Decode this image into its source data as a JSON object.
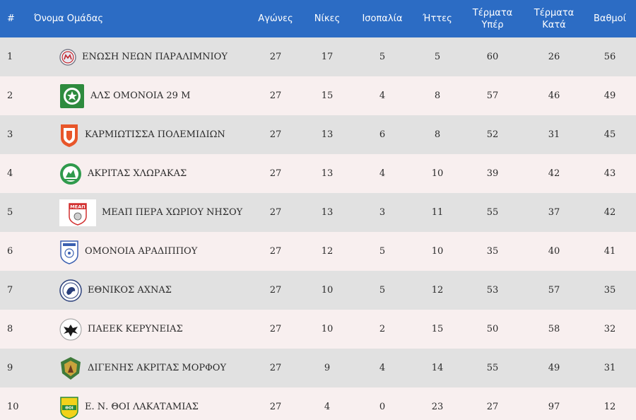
{
  "table": {
    "headers": {
      "pos": "#",
      "team": "Όνομα Ομάδας",
      "played": "Αγώνες",
      "wins": "Νίκες",
      "draws": "Ισοπαλία",
      "losses": "Ήττες",
      "goals_for": [
        "Τέρματα",
        "Υπέρ"
      ],
      "goals_against": [
        "Τέρματα",
        "Κατά"
      ],
      "points": "Βαθμοί"
    },
    "rows": [
      {
        "pos": "1",
        "team": "ΕΝΩΣΗ ΝΕΩΝ ΠΑΡΑΛΙΜΝΙΟΥ",
        "logo": "enp-crest-icon",
        "played": "27",
        "wins": "17",
        "draws": "5",
        "losses": "5",
        "gf": "60",
        "ga": "26",
        "pts": "56"
      },
      {
        "pos": "2",
        "team": "ΑΛΣ ΟΜΟΝΟΙΑ 29 Μ",
        "logo": "omonoia-29m-crest-icon",
        "played": "27",
        "wins": "15",
        "draws": "4",
        "losses": "8",
        "gf": "57",
        "ga": "46",
        "pts": "49"
      },
      {
        "pos": "3",
        "team": "ΚΑΡΜΙΩΤΙΣΣΑ ΠΟΛΕΜΙΔΙΩΝ",
        "logo": "karmiotissa-crest-icon",
        "played": "27",
        "wins": "13",
        "draws": "6",
        "losses": "8",
        "gf": "52",
        "ga": "31",
        "pts": "45"
      },
      {
        "pos": "4",
        "team": "ΑΚΡΙΤΑΣ ΧΛΩΡΑΚΑΣ",
        "logo": "akritas-crest-icon",
        "played": "27",
        "wins": "13",
        "draws": "4",
        "losses": "10",
        "gf": "39",
        "ga": "42",
        "pts": "43"
      },
      {
        "pos": "5",
        "team": "ΜΕΑΠ ΠΕΡΑ ΧΩΡΙΟΥ ΝΗΣΟΥ",
        "logo": "meap-crest-icon",
        "logo_text": "ΜΕΑΠ",
        "played": "27",
        "wins": "13",
        "draws": "3",
        "losses": "11",
        "gf": "55",
        "ga": "37",
        "pts": "42"
      },
      {
        "pos": "6",
        "team": "ΟΜΟΝΟΙΑ ΑΡΑΔΙΠΠΟΥ",
        "logo": "omonoia-aradippou-crest-icon",
        "played": "27",
        "wins": "12",
        "draws": "5",
        "losses": "10",
        "gf": "35",
        "ga": "40",
        "pts": "41"
      },
      {
        "pos": "7",
        "team": "ΕΘΝΙΚΟΣ ΑΧΝΑΣ",
        "logo": "ethnikos-achnas-crest-icon",
        "played": "27",
        "wins": "10",
        "draws": "5",
        "losses": "12",
        "gf": "53",
        "ga": "57",
        "pts": "35"
      },
      {
        "pos": "8",
        "team": "ΠΑΕΕΚ ΚΕΡΥΝΕΙΑΣ",
        "logo": "paeek-crest-icon",
        "played": "27",
        "wins": "10",
        "draws": "2",
        "losses": "15",
        "gf": "50",
        "ga": "58",
        "pts": "32"
      },
      {
        "pos": "9",
        "team": "ΔΙΓΕΝΗΣ ΑΚΡΙΤΑΣ ΜΟΡΦΟΥ",
        "logo": "digenis-morfou-crest-icon",
        "played": "27",
        "wins": "9",
        "draws": "4",
        "losses": "14",
        "gf": "55",
        "ga": "49",
        "pts": "31"
      },
      {
        "pos": "10",
        "team": "Ε. Ν. ΘΟΙ ΛΑΚΑΤΑΜΙΑΣ",
        "logo": "thoi-lakatamias-crest-icon",
        "logo_text": "ΘΟΙ",
        "played": "27",
        "wins": "4",
        "draws": "0",
        "losses": "23",
        "gf": "27",
        "ga": "97",
        "pts": "12"
      }
    ]
  },
  "colors": {
    "header_bg": "#2c6cc4",
    "row_odd": "#e1e1e1",
    "row_even": "#f8efef"
  }
}
